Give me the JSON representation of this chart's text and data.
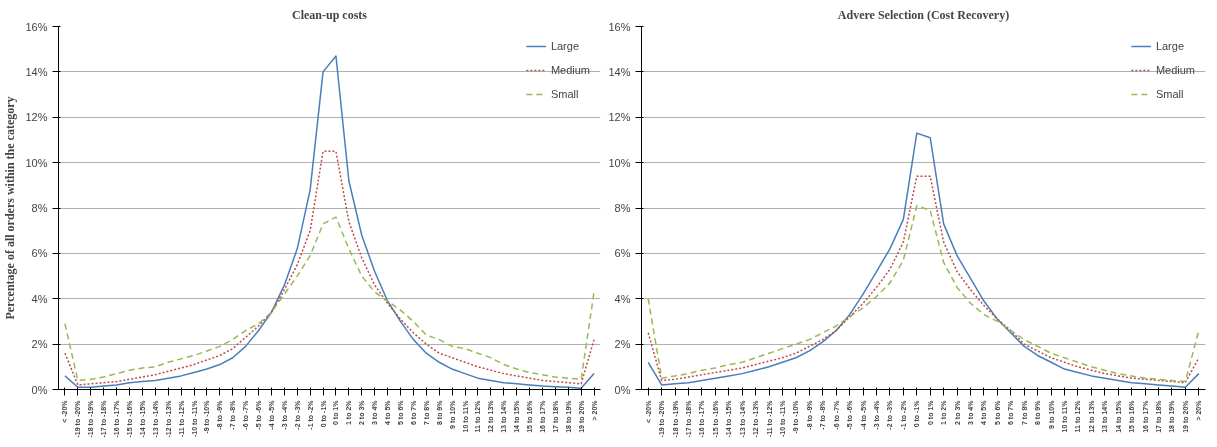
{
  "chart_data": [
    {
      "type": "line",
      "title": "Clean-up costs",
      "ylabel": "Percentage of all orders within the category",
      "categories": [
        "< -20%",
        "-19 to -20%",
        "-18 to -19%",
        "-17 to -18%",
        "-16 to -17%",
        "-15 to -16%",
        "-14 to -15%",
        "-13 to -14%",
        "-12 to -13%",
        "-11 to -12%",
        "-10 to -11%",
        "-9 to -10%",
        "-8 to -9%",
        "-7 to -8%",
        "-6 to -7%",
        "-5 to -6%",
        "-4 to -5%",
        "-3 to -4%",
        "-2 to -3%",
        "-1 to -2%",
        "0 to -1%",
        "0 to 1%",
        "1 to 2%",
        "2 to 3%",
        "3 to 4%",
        "4 to 5%",
        "5 to 6%",
        "6 to 7%",
        "7 to 8%",
        "8 to 9%",
        "9 to 10%",
        "10 to 11%",
        "11 to 12%",
        "12 to 13%",
        "13 to 14%",
        "14 to 15%",
        "15 to 16%",
        "16 to 17%",
        "17 to 18%",
        "18 to 19%",
        "19 to 20%",
        "> 20%"
      ],
      "series": [
        {
          "name": "Large",
          "color": "#4a7ebb",
          "line_style": "solid",
          "values": [
            0.6,
            0.1,
            0.1,
            0.15,
            0.2,
            0.3,
            0.35,
            0.4,
            0.5,
            0.6,
            0.75,
            0.9,
            1.1,
            1.4,
            1.9,
            2.6,
            3.4,
            4.6,
            6.2,
            8.8,
            14.0,
            14.7,
            9.2,
            6.8,
            5.2,
            3.9,
            3.0,
            2.2,
            1.6,
            1.2,
            0.9,
            0.7,
            0.5,
            0.4,
            0.3,
            0.25,
            0.2,
            0.15,
            0.12,
            0.1,
            0.05,
            0.7
          ]
        },
        {
          "name": "Medium",
          "color": "#be4b48",
          "line_style": "dotted",
          "values": [
            1.6,
            0.2,
            0.25,
            0.3,
            0.35,
            0.45,
            0.55,
            0.65,
            0.8,
            0.95,
            1.1,
            1.3,
            1.5,
            1.8,
            2.3,
            2.8,
            3.4,
            4.4,
            5.5,
            7.0,
            10.5,
            10.5,
            7.4,
            5.8,
            4.6,
            3.8,
            3.1,
            2.5,
            2.0,
            1.6,
            1.4,
            1.2,
            1.0,
            0.85,
            0.7,
            0.6,
            0.5,
            0.4,
            0.35,
            0.3,
            0.25,
            2.2
          ]
        },
        {
          "name": "Small",
          "color": "#98b954",
          "line_style": "dashed",
          "values": [
            2.9,
            0.4,
            0.45,
            0.55,
            0.7,
            0.85,
            0.95,
            1.0,
            1.2,
            1.35,
            1.5,
            1.7,
            1.9,
            2.2,
            2.6,
            2.9,
            3.4,
            4.2,
            5.0,
            5.9,
            7.3,
            7.6,
            6.2,
            5.0,
            4.3,
            3.9,
            3.5,
            3.0,
            2.4,
            2.2,
            1.9,
            1.8,
            1.6,
            1.4,
            1.1,
            0.9,
            0.75,
            0.65,
            0.55,
            0.5,
            0.45,
            4.3
          ]
        }
      ],
      "ylim": [
        0,
        16
      ],
      "yticks": [
        {
          "value": 0,
          "label": "0%"
        },
        {
          "value": 2,
          "label": "2%"
        },
        {
          "value": 4,
          "label": "4%"
        },
        {
          "value": 6,
          "label": "6%"
        },
        {
          "value": 8,
          "label": "8%"
        },
        {
          "value": 10,
          "label": "10%"
        },
        {
          "value": 12,
          "label": "12%"
        },
        {
          "value": 14,
          "label": "14%"
        },
        {
          "value": 16,
          "label": "16%"
        }
      ],
      "grid": "y",
      "legend": "top right"
    },
    {
      "type": "line",
      "title": "Advere Selection (Cost Recovery)",
      "categories": [
        "< -20%",
        "-19 to -20%",
        "-18 to -19%",
        "-17 to -18%",
        "-16 to -17%",
        "-15 to -16%",
        "-14 to -15%",
        "-13 to -14%",
        "-12 to -13%",
        "-11 to -12%",
        "-10 to -11%",
        "-9 to -10%",
        "-8 to -9%",
        "-7 to -8%",
        "-6 to -7%",
        "-5 to -6%",
        "-4 to -5%",
        "-3 to -4%",
        "-2 to -3%",
        "-1 to -2%",
        "0 to -1%",
        "0 to 1%",
        "1 to 2%",
        "2 to 3%",
        "3 to 4%",
        "4 to 5%",
        "5 to 6%",
        "6 to 7%",
        "7 to 8%",
        "8 to 9%",
        "9 to 10%",
        "10 to 11%",
        "11 to 12%",
        "12 to 13%",
        "13 to 14%",
        "14 to 15%",
        "15 to 16%",
        "16 to 17%",
        "17 to 18%",
        "18 to 19%",
        "19 to 20%",
        "> 20%"
      ],
      "series": [
        {
          "name": "Large",
          "color": "#4a7ebb",
          "line_style": "solid",
          "values": [
            1.2,
            0.2,
            0.25,
            0.3,
            0.4,
            0.5,
            0.6,
            0.7,
            0.85,
            1.0,
            1.2,
            1.4,
            1.7,
            2.1,
            2.6,
            3.3,
            4.2,
            5.2,
            6.2,
            7.5,
            11.3,
            11.1,
            7.3,
            5.9,
            4.9,
            3.9,
            3.1,
            2.5,
            1.9,
            1.5,
            1.2,
            0.9,
            0.75,
            0.6,
            0.5,
            0.4,
            0.3,
            0.25,
            0.2,
            0.15,
            0.1,
            0.7
          ]
        },
        {
          "name": "Medium",
          "color": "#be4b48",
          "line_style": "dotted",
          "values": [
            2.5,
            0.4,
            0.45,
            0.55,
            0.65,
            0.75,
            0.85,
            0.95,
            1.1,
            1.25,
            1.4,
            1.6,
            1.9,
            2.2,
            2.6,
            3.2,
            3.8,
            4.5,
            5.3,
            6.5,
            9.4,
            9.4,
            6.5,
            5.2,
            4.4,
            3.7,
            3.1,
            2.6,
            2.0,
            1.7,
            1.4,
            1.2,
            1.0,
            0.85,
            0.7,
            0.6,
            0.5,
            0.45,
            0.4,
            0.35,
            0.3,
            1.4
          ]
        },
        {
          "name": "Small",
          "color": "#98b954",
          "line_style": "dashed",
          "values": [
            4.0,
            0.5,
            0.6,
            0.7,
            0.85,
            0.95,
            1.1,
            1.2,
            1.4,
            1.6,
            1.8,
            2.0,
            2.2,
            2.5,
            2.8,
            3.2,
            3.6,
            4.1,
            4.7,
            5.7,
            8.1,
            7.9,
            5.6,
            4.5,
            3.8,
            3.3,
            3.0,
            2.6,
            2.2,
            1.9,
            1.6,
            1.4,
            1.2,
            1.0,
            0.85,
            0.7,
            0.6,
            0.5,
            0.45,
            0.4,
            0.35,
            2.6
          ]
        }
      ],
      "ylim": [
        0,
        16
      ],
      "yticks": [
        {
          "value": 0,
          "label": "0%"
        },
        {
          "value": 2,
          "label": "2%"
        },
        {
          "value": 4,
          "label": "4%"
        },
        {
          "value": 6,
          "label": "6%"
        },
        {
          "value": 8,
          "label": "8%"
        },
        {
          "value": 10,
          "label": "10%"
        },
        {
          "value": 12,
          "label": "12%"
        },
        {
          "value": 14,
          "label": "14%"
        },
        {
          "value": 16,
          "label": "16%"
        }
      ],
      "grid": "y",
      "legend": "top right"
    }
  ]
}
